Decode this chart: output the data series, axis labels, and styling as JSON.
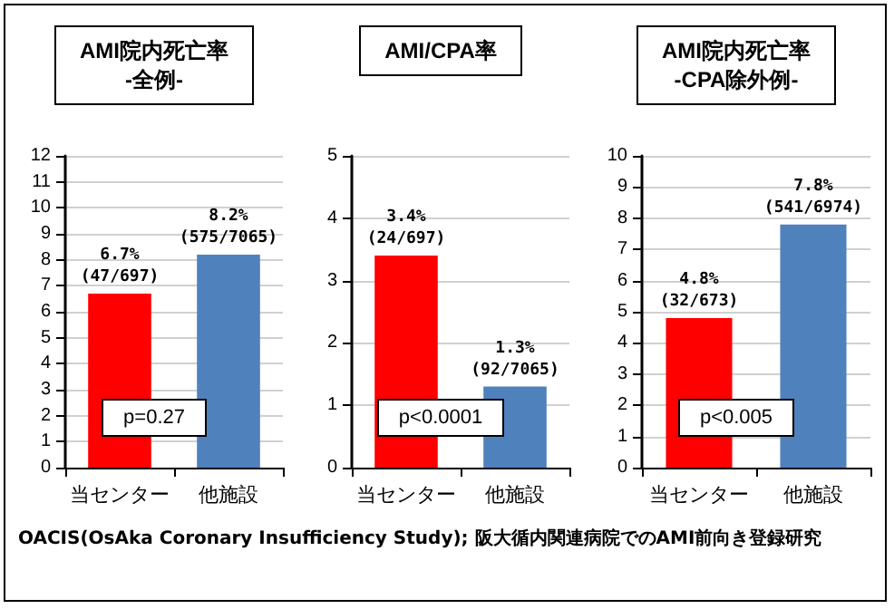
{
  "chart_data": [
    {
      "type": "bar",
      "title": "AMI院内死亡率\n-全例-",
      "categories": [
        "当センター",
        "他施設"
      ],
      "values": [
        6.7,
        8.2
      ],
      "colors": [
        "#ff0000",
        "#4f81bd"
      ],
      "ylim": [
        0,
        12
      ],
      "yticks": [
        0,
        1,
        2,
        3,
        4,
        5,
        6,
        7,
        8,
        9,
        10,
        11,
        12
      ],
      "grid": "y",
      "value_labels": [
        "6.7%\n(47/697)",
        "8.2%\n(575/7065)"
      ],
      "annotations": [
        "p=0.27"
      ]
    },
    {
      "type": "bar",
      "title": "AMI/CPA率",
      "categories": [
        "当センター",
        "他施設"
      ],
      "values": [
        3.4,
        1.3
      ],
      "colors": [
        "#ff0000",
        "#4f81bd"
      ],
      "ylim": [
        0,
        5
      ],
      "yticks": [
        0,
        1,
        2,
        3,
        4,
        5
      ],
      "grid": "y",
      "value_labels": [
        "3.4%\n(24/697)",
        "1.3%\n(92/7065)"
      ],
      "annotations": [
        "p<0.0001"
      ]
    },
    {
      "type": "bar",
      "title": "AMI院内死亡率\n-CPA除外例-",
      "categories": [
        "当センター",
        "他施設"
      ],
      "values": [
        4.8,
        7.8
      ],
      "colors": [
        "#ff0000",
        "#4f81bd"
      ],
      "ylim": [
        0,
        10
      ],
      "yticks": [
        0,
        1,
        2,
        3,
        4,
        5,
        6,
        7,
        8,
        9,
        10
      ],
      "grid": "y",
      "value_labels": [
        "4.8%\n(32/673)",
        "7.8%\n(541/6974)"
      ],
      "annotations": [
        "p<0.005"
      ]
    },
    {
      "type": "other",
      "annotations": [
        "OACIS(OsAka Coronary Insufficiency Study); 阪大循内関連病院でのAMI前向き登録研究"
      ]
    }
  ]
}
